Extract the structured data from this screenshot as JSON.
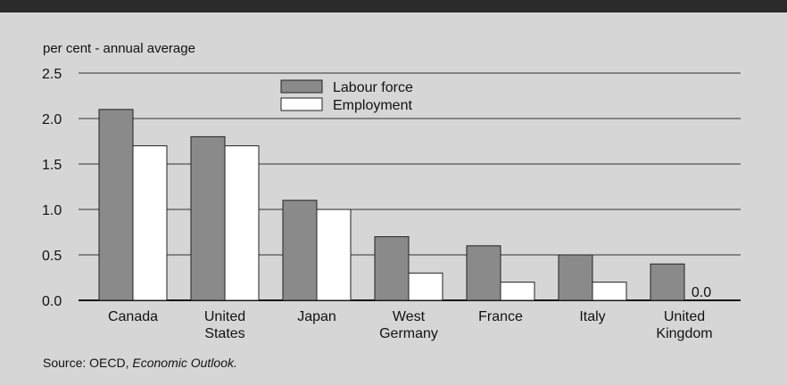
{
  "chart_data": {
    "type": "bar",
    "ylabel": "per cent - annual average",
    "ylim": [
      0,
      2.5
    ],
    "yticks": [
      "0.0",
      "0.5",
      "1.0",
      "1.5",
      "2.0",
      "2.5"
    ],
    "grid": true,
    "legend_position": "top-center",
    "categories": [
      [
        "Canada"
      ],
      [
        "United",
        "States"
      ],
      [
        "Japan"
      ],
      [
        "West",
        "Germany"
      ],
      [
        "France"
      ],
      [
        "Italy"
      ],
      [
        "United",
        "Kingdom"
      ]
    ],
    "series": [
      {
        "name": "Labour force",
        "color": "#8a8a8a",
        "values": [
          2.1,
          1.8,
          1.1,
          0.7,
          0.6,
          0.5,
          0.4
        ]
      },
      {
        "name": "Employment",
        "color": "#ffffff",
        "values": [
          1.7,
          1.7,
          1.0,
          0.3,
          0.2,
          0.2,
          0.0
        ]
      }
    ],
    "annotations": [
      {
        "category_index": 6,
        "series_index": 1,
        "text": "0.0"
      }
    ]
  },
  "source": {
    "prefix": "Source: OECD, ",
    "title": "Economic Outlook."
  }
}
